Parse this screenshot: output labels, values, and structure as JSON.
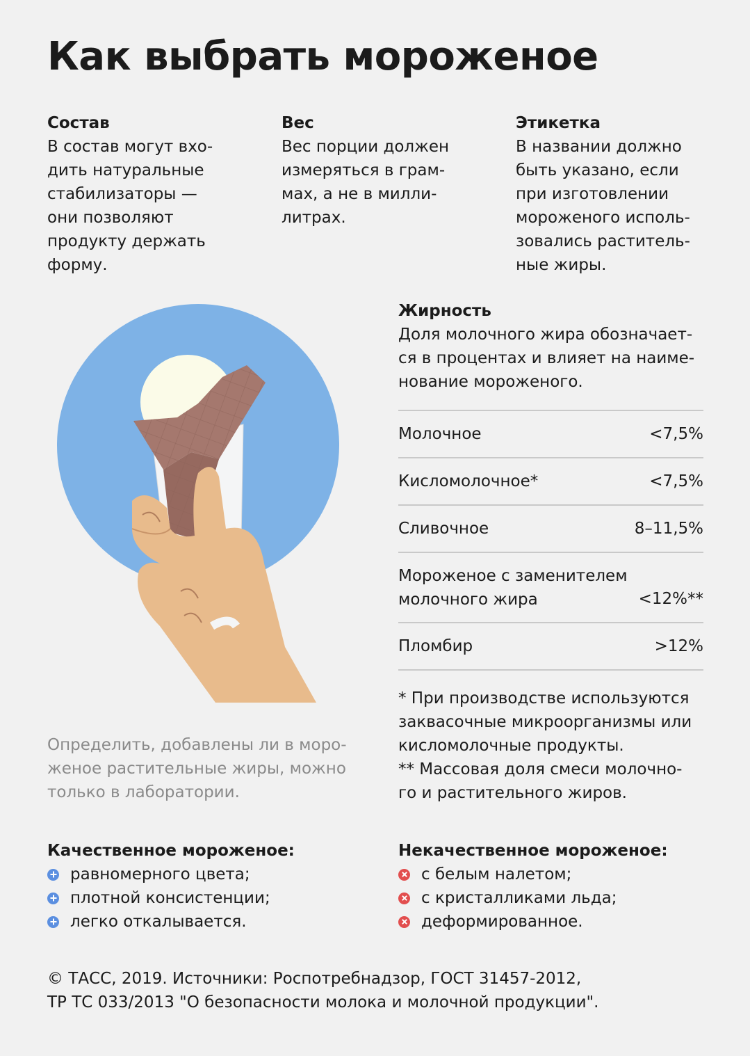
{
  "title": "Как выбрать мороженое",
  "columns": [
    {
      "heading": "Состав",
      "text": "В состав могут вхо-\nдить натуральные\nстабилизаторы —\nони позволяют\nпродукту держать\nформу."
    },
    {
      "heading": "Вес",
      "text": "Вес порции должен\nизмеряться в грам-\nмах, а не в милли-\nлитрах."
    },
    {
      "heading": "Этикетка",
      "text": "В названии должно\nбыть указано, если\nпри изготовлении\nмороженого исполь-\nзовались раститель-\nные жиры."
    }
  ],
  "fat": {
    "heading": "Жирность",
    "text": "Доля молочного жира обозначает-\nся в процентах и влияет на наиме-\nнование мороженого.",
    "rows": [
      {
        "name": "Молочное",
        "value": "<7,5%"
      },
      {
        "name": "Кисломолочное*",
        "value": "<7,5%"
      },
      {
        "name": "Сливочное",
        "value": "8–11,5%"
      },
      {
        "name": "Мороженое с заменителем\nмолочного жира",
        "value": "<12%**"
      },
      {
        "name": "Пломбир",
        "value": ">12%"
      }
    ],
    "footnotes": "* При производстве используются\nзаквасочные микроорганизмы или\nкисломолочные продукты.\n** Массовая доля смеси молочно-\nго и растительного жиров."
  },
  "lab_note": "Определить, добавлены ли в моро-\nженое растительные жиры, можно\nтолько в лаборатории.",
  "good": {
    "heading": "Качественное мороженое:",
    "items": [
      "равномерного цвета;",
      "плотной консистенции;",
      "легко откалывается."
    ]
  },
  "bad": {
    "heading": "Некачественное мороженое:",
    "items": [
      "с белым налетом;",
      "с кристалликами льда;",
      "деформированное."
    ]
  },
  "footer": "© ТАСС, 2019. Источники: Роспотребнадзор, ГОСТ 31457-2012,\nТР ТС 033/2013 \"О безопасности молока и молочной продукции\".",
  "icons": {
    "good_bullet": "plus-circle-icon",
    "bad_bullet": "cross-circle-icon"
  },
  "colors": {
    "circle": "#7eb2e6",
    "good": "#5b8fe0",
    "bad": "#e24e4e",
    "hand": "#e8bb8c",
    "cone": "#a5786e"
  }
}
